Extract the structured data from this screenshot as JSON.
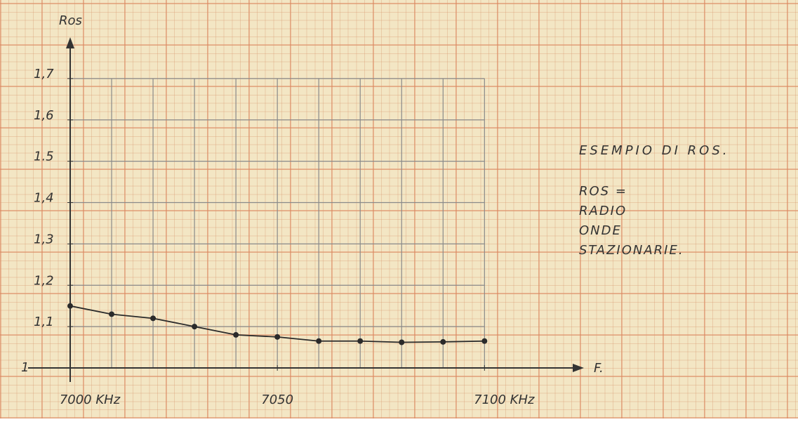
{
  "chart_data": {
    "type": "line",
    "y_label": "Ros",
    "x_label": "F.",
    "x": [
      7000,
      7010,
      7020,
      7030,
      7040,
      7050,
      7060,
      7070,
      7080,
      7090,
      7100
    ],
    "series": [
      {
        "color": "#2a2a2a",
        "values": [
          1.15,
          1.13,
          1.12,
          1.1,
          1.08,
          1.075,
          1.065,
          1.065,
          1.062,
          1.063,
          1.065
        ]
      }
    ],
    "xlim": [
      7000,
      7124
    ],
    "ylim": [
      1,
      1.8
    ],
    "xticks": [
      {
        "value": 7000,
        "label": "7000 KHz"
      },
      7050,
      {
        "value": 7100,
        "label": "7100 KHz"
      }
    ],
    "yticks": [
      1,
      {
        "value": 1.1,
        "label": "1,1"
      },
      {
        "value": 1.2,
        "label": "1,2"
      },
      {
        "value": 1.3,
        "label": "1,3"
      },
      {
        "value": 1.4,
        "label": "1,4"
      },
      1.5,
      {
        "value": 1.6,
        "label": "1,6"
      },
      {
        "value": 1.7,
        "label": "1,7"
      }
    ],
    "grid": true,
    "annotations": [
      "ESEMPIO DI ROS.",
      "ROS =",
      "RADIO",
      "ONDE",
      "STAZIONARIE."
    ]
  }
}
